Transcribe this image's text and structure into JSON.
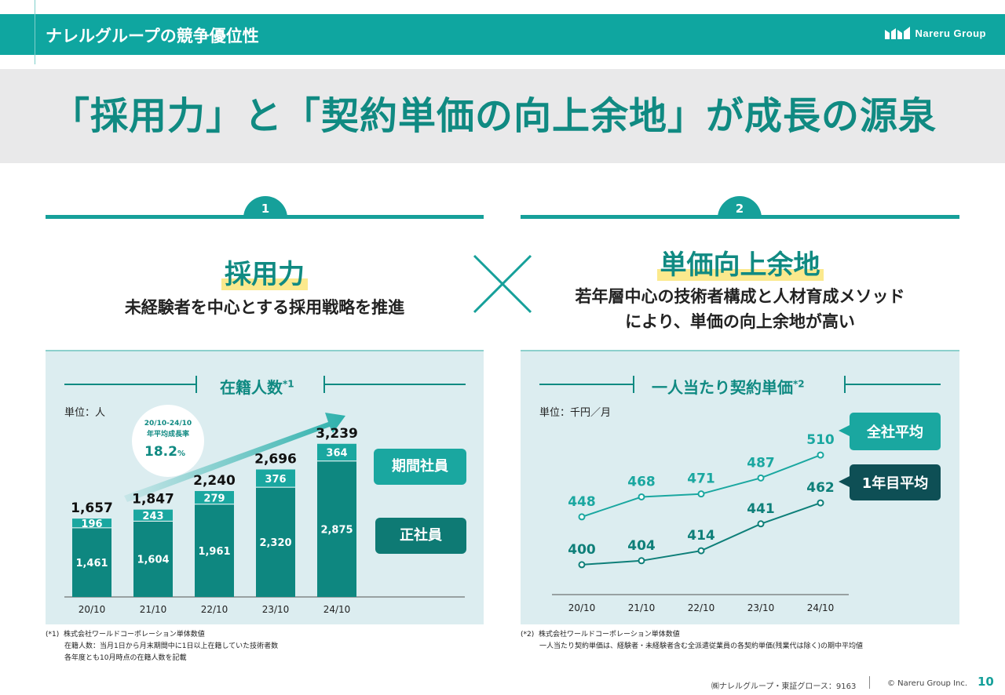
{
  "header": {
    "section_title": "ナレルグループの競争優位性",
    "logo_text": "Nareru Group",
    "brand_color": "#0fa6a0"
  },
  "headline": "「採用力」と「契約単価の向上余地」が成長の源泉",
  "pillars": [
    {
      "number": "1",
      "title": "採用力",
      "subtitle": "未経験者を中心とする採用戦略を推進"
    },
    {
      "number": "2",
      "title": "単価向上余地",
      "subtitle_line1": "若年層中心の技術者構成と人材育成メソッド",
      "subtitle_line2": "により、単価の向上余地が高い"
    }
  ],
  "cross_icon": "cross-multiply-icon",
  "chart_data": [
    {
      "type": "bar",
      "title": "在籍人数",
      "title_note": "*1",
      "unit": "単位：人",
      "categories": [
        "20/10",
        "21/10",
        "22/10",
        "23/10",
        "24/10"
      ],
      "series": [
        {
          "name": "正社員",
          "values": [
            1461,
            1604,
            1961,
            2320,
            2875
          ],
          "labels": [
            "1,461",
            "1,604",
            "1,961",
            "2,320",
            "2,875"
          ],
          "color": "#0e8780"
        },
        {
          "name": "期間社員",
          "values": [
            196,
            243,
            279,
            376,
            364
          ],
          "labels": [
            "196",
            "243",
            "279",
            "376",
            "364"
          ],
          "color": "#1aa7a0"
        }
      ],
      "totals": [
        1657,
        1847,
        2240,
        2696,
        3239
      ],
      "total_labels": [
        "1,657",
        "1,847",
        "2,240",
        "2,696",
        "3,239"
      ],
      "ylim": [
        0,
        3600
      ],
      "growth_callout": {
        "period": "20/10-24/10",
        "label": "年平均成長率",
        "value": "18.2",
        "unit": "%"
      },
      "legend_labels": {
        "temp": "期間社員",
        "regular": "正社員"
      }
    },
    {
      "type": "line",
      "title": "一人当たり契約単価",
      "title_note": "*2",
      "unit": "単位：千円／月",
      "categories": [
        "20/10",
        "21/10",
        "22/10",
        "23/10",
        "24/10"
      ],
      "series": [
        {
          "name": "全社平均",
          "values": [
            448,
            468,
            471,
            487,
            510
          ],
          "color": "#1aa7a0"
        },
        {
          "name": "1年目平均",
          "values": [
            400,
            404,
            414,
            441,
            462
          ],
          "color": "#0e7f79"
        }
      ],
      "ylim": [
        370,
        540
      ]
    }
  ],
  "notes": {
    "left": {
      "marker": "(*1)",
      "line1": "株式会社ワールドコーポレーション単体数値",
      "line2": "在籍人数：当月1日から月末期間中に1日以上在籍していた技術者数",
      "line3": "各年度とも10月時点の在籍人数を記載"
    },
    "right": {
      "marker": "(*2)",
      "line1": "株式会社ワールドコーポレーション単体数値",
      "line2": "一人当たり契約単価は、経験者・未経験者含む全派遣従業員の各契約単価(残業代は除く)の期中平均値"
    }
  },
  "footer": {
    "company": "㈱ナレルグループ・東証グロース：9163",
    "copyright": "© Nareru Group Inc.",
    "page": "10"
  }
}
